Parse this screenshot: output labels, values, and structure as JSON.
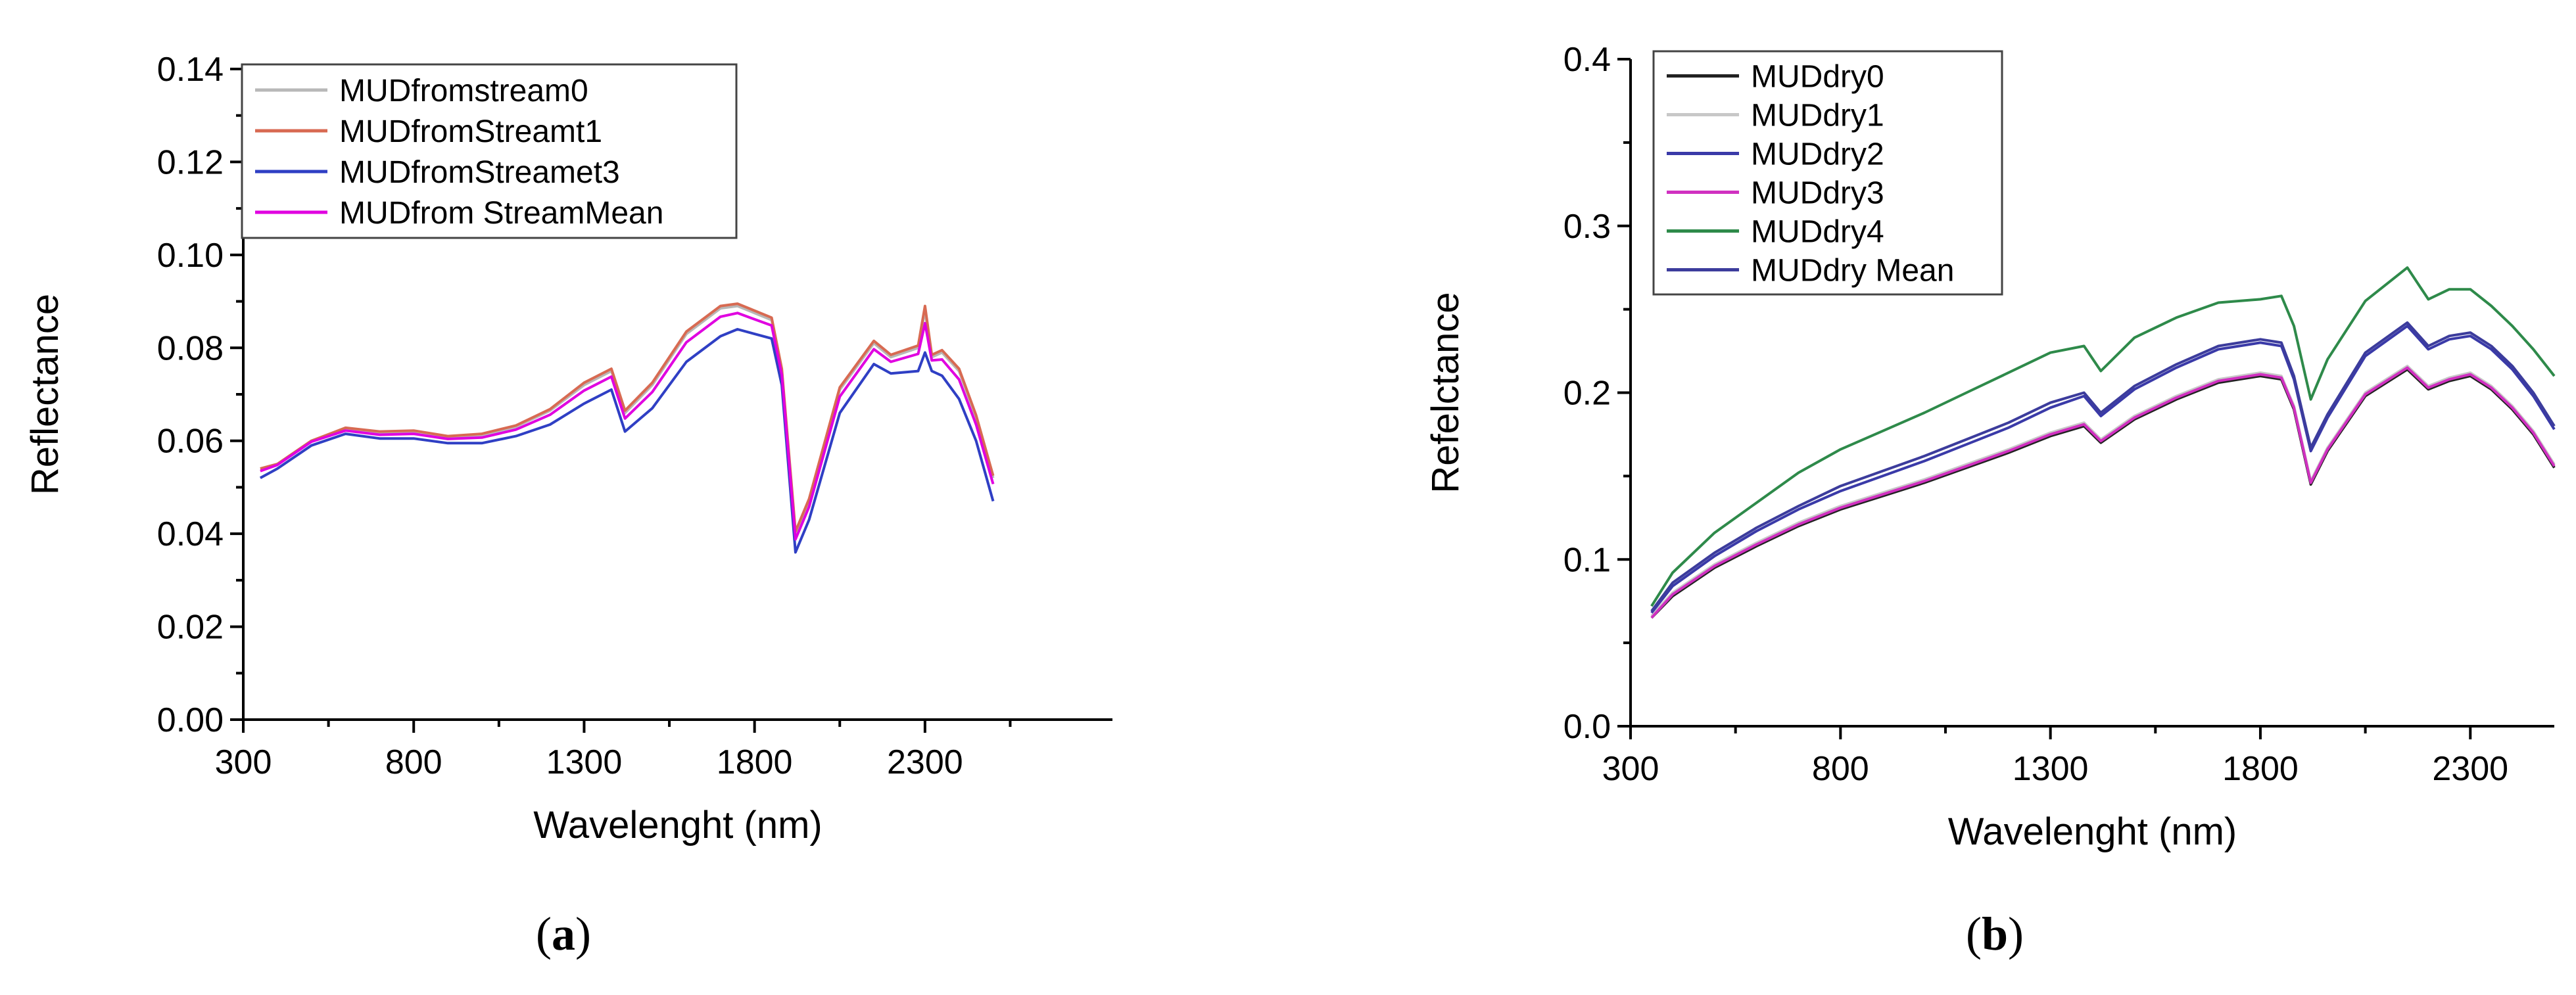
{
  "chart_data": [
    {
      "type": "line",
      "panel_label": "a",
      "title": "",
      "xlabel": "Wavelenght (nm)",
      "ylabel": "Reflectance",
      "xlim": [
        300,
        2850
      ],
      "ylim": [
        0,
        0.14
      ],
      "xticks": [
        "300",
        "800",
        "1300",
        "1800",
        "2300"
      ],
      "xtick_values": [
        300,
        800,
        1300,
        1800,
        2300
      ],
      "yticks": [
        "0.00",
        "0.02",
        "0.04",
        "0.06",
        "0.08",
        "0.10",
        "0.12",
        "0.14"
      ],
      "ytick_values": [
        0,
        0.02,
        0.04,
        0.06,
        0.08,
        0.1,
        0.12,
        0.14
      ],
      "legend_position": "top-left",
      "x": [
        350,
        400,
        500,
        600,
        700,
        800,
        900,
        1000,
        1100,
        1200,
        1300,
        1380,
        1420,
        1500,
        1600,
        1700,
        1750,
        1850,
        1880,
        1920,
        1960,
        2050,
        2150,
        2200,
        2280,
        2300,
        2320,
        2350,
        2400,
        2450,
        2500
      ],
      "series": [
        {
          "name": "MUDfromstream0",
          "color": "#b8b8b8",
          "values": [
            0.054,
            0.055,
            0.06,
            0.0625,
            0.0615,
            0.062,
            0.0608,
            0.0612,
            0.063,
            0.0665,
            0.072,
            0.075,
            0.066,
            0.072,
            0.083,
            0.0885,
            0.089,
            0.086,
            0.075,
            0.04,
            0.047,
            0.071,
            0.081,
            0.078,
            0.08,
            0.088,
            0.078,
            0.079,
            0.075,
            0.065,
            0.052
          ]
        },
        {
          "name": "MUDfromStreamt1",
          "color": "#d86a52",
          "values": [
            0.054,
            0.055,
            0.06,
            0.0628,
            0.062,
            0.0622,
            0.061,
            0.0615,
            0.0633,
            0.0668,
            0.0725,
            0.0755,
            0.0665,
            0.0725,
            0.0835,
            0.089,
            0.0895,
            0.0865,
            0.0755,
            0.0405,
            0.0475,
            0.0715,
            0.0815,
            0.0785,
            0.0805,
            0.089,
            0.0785,
            0.0795,
            0.0755,
            0.0655,
            0.0525
          ]
        },
        {
          "name": "MUDfromStreamet3",
          "color": "#2f3fc4",
          "values": [
            0.052,
            0.054,
            0.059,
            0.0615,
            0.0605,
            0.0605,
            0.0595,
            0.0595,
            0.061,
            0.0635,
            0.068,
            0.071,
            0.062,
            0.067,
            0.077,
            0.0825,
            0.084,
            0.082,
            0.072,
            0.036,
            0.043,
            0.066,
            0.0765,
            0.0745,
            0.075,
            0.079,
            0.075,
            0.074,
            0.069,
            0.06,
            0.047
          ]
        },
        {
          "name": "MUDfrom StreamMean",
          "color": "#e000e0",
          "values": [
            0.0535,
            0.0548,
            0.0598,
            0.0622,
            0.0613,
            0.0615,
            0.0604,
            0.0607,
            0.0624,
            0.0656,
            0.0708,
            0.0738,
            0.0648,
            0.0705,
            0.0812,
            0.0867,
            0.0875,
            0.0848,
            0.0742,
            0.0388,
            0.0458,
            0.0695,
            0.0797,
            0.077,
            0.0787,
            0.0853,
            0.0773,
            0.0775,
            0.0732,
            0.0635,
            0.0507
          ]
        }
      ]
    },
    {
      "type": "line",
      "panel_label": "b",
      "title": "",
      "xlabel": "Wavelenght (nm)",
      "ylabel": "Refelctance",
      "xlim": [
        300,
        2500
      ],
      "ylim": [
        0,
        0.4
      ],
      "xticks": [
        "300",
        "800",
        "1300",
        "1800",
        "2300"
      ],
      "xtick_values": [
        300,
        800,
        1300,
        1800,
        2300
      ],
      "yticks": [
        "0.0",
        "0.1",
        "0.2",
        "0.3",
        "0.4"
      ],
      "ytick_values": [
        0,
        0.1,
        0.2,
        0.3,
        0.4
      ],
      "legend_position": "top-left",
      "x": [
        350,
        400,
        500,
        600,
        700,
        800,
        900,
        1000,
        1100,
        1200,
        1300,
        1380,
        1420,
        1500,
        1600,
        1700,
        1800,
        1850,
        1880,
        1920,
        1960,
        2050,
        2150,
        2200,
        2250,
        2300,
        2350,
        2400,
        2450,
        2500
      ],
      "series": [
        {
          "name": "MUDdry0",
          "color": "#222222",
          "values": [
            0.065,
            0.078,
            0.095,
            0.108,
            0.12,
            0.13,
            0.138,
            0.146,
            0.155,
            0.164,
            0.174,
            0.18,
            0.17,
            0.184,
            0.196,
            0.206,
            0.21,
            0.208,
            0.19,
            0.145,
            0.165,
            0.198,
            0.214,
            0.202,
            0.207,
            0.21,
            0.202,
            0.19,
            0.175,
            0.155
          ]
        },
        {
          "name": "MUDdry1",
          "color": "#c8c8c8",
          "values": [
            0.066,
            0.08,
            0.097,
            0.11,
            0.122,
            0.132,
            0.14,
            0.148,
            0.157,
            0.166,
            0.176,
            0.182,
            0.172,
            0.186,
            0.198,
            0.208,
            0.212,
            0.21,
            0.192,
            0.147,
            0.167,
            0.2,
            0.216,
            0.204,
            0.209,
            0.212,
            0.204,
            0.192,
            0.177,
            0.157
          ]
        },
        {
          "name": "MUDdry2",
          "color": "#3a3aa8",
          "values": [
            0.068,
            0.084,
            0.102,
            0.117,
            0.13,
            0.141,
            0.15,
            0.159,
            0.169,
            0.179,
            0.191,
            0.198,
            0.186,
            0.202,
            0.215,
            0.226,
            0.23,
            0.228,
            0.208,
            0.165,
            0.185,
            0.222,
            0.24,
            0.226,
            0.232,
            0.234,
            0.226,
            0.214,
            0.198,
            0.178
          ]
        },
        {
          "name": "MUDdry3",
          "color": "#d030c0",
          "values": [
            0.065,
            0.079,
            0.096,
            0.109,
            0.121,
            0.131,
            0.139,
            0.147,
            0.156,
            0.165,
            0.175,
            0.181,
            0.171,
            0.185,
            0.197,
            0.207,
            0.211,
            0.209,
            0.191,
            0.146,
            0.166,
            0.199,
            0.215,
            0.203,
            0.208,
            0.211,
            0.203,
            0.191,
            0.176,
            0.156
          ]
        },
        {
          "name": "MUDdry4",
          "color": "#2e8a4a",
          "values": [
            0.072,
            0.092,
            0.116,
            0.134,
            0.152,
            0.166,
            0.177,
            0.188,
            0.2,
            0.212,
            0.224,
            0.228,
            0.213,
            0.233,
            0.245,
            0.254,
            0.256,
            0.258,
            0.24,
            0.196,
            0.22,
            0.255,
            0.275,
            0.256,
            0.262,
            0.262,
            0.252,
            0.24,
            0.226,
            0.21
          ]
        },
        {
          "name": "MUDdry Mean",
          "color": "#3c3c9c",
          "values": [
            0.069,
            0.086,
            0.104,
            0.119,
            0.132,
            0.144,
            0.153,
            0.162,
            0.172,
            0.182,
            0.194,
            0.2,
            0.188,
            0.204,
            0.217,
            0.228,
            0.232,
            0.23,
            0.21,
            0.167,
            0.187,
            0.224,
            0.242,
            0.228,
            0.234,
            0.236,
            0.228,
            0.216,
            0.2,
            0.18
          ]
        }
      ]
    }
  ]
}
